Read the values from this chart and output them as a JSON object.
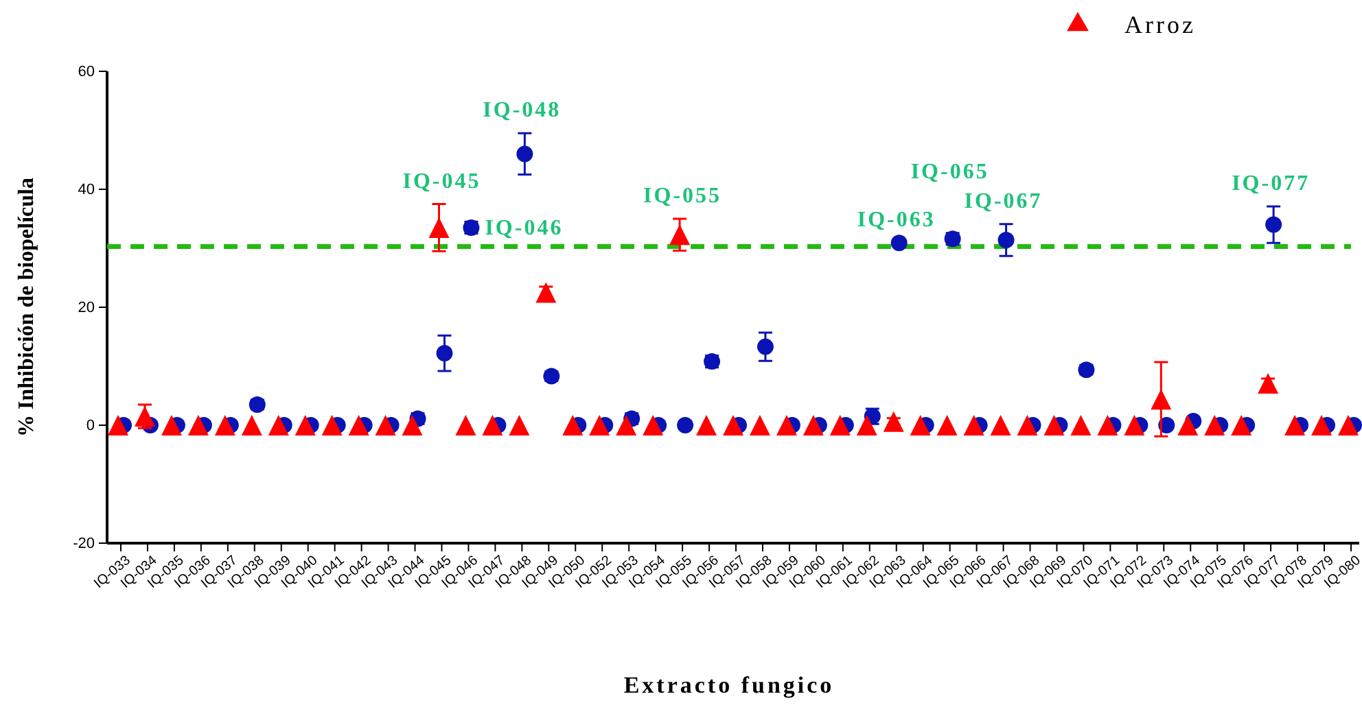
{
  "chart_data": {
    "type": "scatter",
    "xlabel": "Extracto fungico",
    "ylabel": "% Inhibición de biopelícula",
    "categories": [
      "IQ-033",
      "IQ-034",
      "IQ-035",
      "IQ-036",
      "IQ-037",
      "IQ-038",
      "IQ-039",
      "IQ-040",
      "IQ-041",
      "IQ-042",
      "IQ-043",
      "IQ-044",
      "IQ-045",
      "IQ-046",
      "IQ-047",
      "IQ-048",
      "IQ-049",
      "IQ-050",
      "IQ-052",
      "IQ-053",
      "IQ-054",
      "IQ-055",
      "IQ-056",
      "IQ-057",
      "IQ-058",
      "IQ-059",
      "IQ-060",
      "IQ-061",
      "IQ-062",
      "IQ-063",
      "IQ-064",
      "IQ-065",
      "IQ-066",
      "IQ-067",
      "IQ-068",
      "IQ-069",
      "IQ-070",
      "IQ-071",
      "IQ-072",
      "IQ-073",
      "IQ-074",
      "IQ-075",
      "IQ-076",
      "IQ-077",
      "IQ-078",
      "IQ-079",
      "IQ-080"
    ],
    "series": [
      {
        "color": "#0a14b4",
        "marker": "circle",
        "values": [
          0,
          0,
          0,
          0,
          0,
          3.5,
          0,
          0,
          0,
          0,
          0,
          1.1,
          12.2,
          33.5,
          0,
          46,
          8.3,
          0,
          0,
          1.1,
          0,
          0,
          10.8,
          0,
          13.3,
          0,
          0,
          0,
          1.5,
          30.9,
          0,
          31.6,
          0,
          31.4,
          0,
          0,
          9.4,
          0,
          0,
          0,
          0.7,
          0,
          0,
          34,
          0,
          0,
          0
        ],
        "errors": [
          null,
          null,
          null,
          null,
          null,
          0.8,
          null,
          null,
          null,
          null,
          null,
          0.9,
          3,
          1,
          null,
          3.5,
          0.8,
          null,
          null,
          0.9,
          null,
          null,
          1,
          null,
          2.4,
          null,
          null,
          null,
          1.3,
          null,
          null,
          1,
          null,
          2.7,
          null,
          null,
          0.8,
          null,
          null,
          null,
          null,
          null,
          null,
          3.1,
          null,
          null,
          null
        ]
      },
      {
        "name": "Arroz",
        "color": "#ff0000",
        "marker": "triangle",
        "values": [
          0,
          1.5,
          0,
          0,
          0,
          0,
          0,
          0,
          0,
          0,
          0,
          0,
          33.5,
          0,
          0,
          0,
          22.5,
          0,
          0,
          0,
          0,
          32.3,
          0,
          0,
          0,
          0,
          0,
          0,
          0,
          0.6,
          0,
          0,
          0,
          0,
          0,
          0,
          0,
          0,
          0,
          4.4,
          0,
          0,
          0,
          7.1,
          0,
          0,
          0
        ],
        "errors": [
          null,
          2,
          null,
          null,
          null,
          null,
          null,
          null,
          null,
          null,
          null,
          null,
          4,
          null,
          null,
          null,
          1,
          null,
          null,
          null,
          null,
          2.7,
          null,
          null,
          null,
          null,
          null,
          null,
          null,
          0.6,
          null,
          null,
          null,
          null,
          null,
          null,
          null,
          null,
          null,
          6.3,
          null,
          null,
          null,
          0.8,
          null,
          null,
          null
        ]
      }
    ],
    "ylim": [
      -20,
      60
    ],
    "yticks": [
      -20,
      0,
      20,
      40,
      60
    ],
    "grid": false,
    "legend": "top right",
    "ref_lines": [
      {
        "axis": "y",
        "value": 30.3,
        "color": "#22bb11",
        "line_style": "dashed"
      }
    ],
    "annotations": [
      {
        "text": "IQ-045",
        "x": "IQ-045",
        "y": 33.5
      },
      {
        "text": "IQ-046",
        "x": "IQ-046",
        "y": 33.5
      },
      {
        "text": "IQ-048",
        "x": "IQ-048",
        "y": 46
      },
      {
        "text": "IQ-055",
        "x": "IQ-055",
        "y": 32.3
      },
      {
        "text": "IQ-063",
        "x": "IQ-063",
        "y": 30.9
      },
      {
        "text": "IQ-065",
        "x": "IQ-065",
        "y": 31.6
      },
      {
        "text": "IQ-067",
        "x": "IQ-067",
        "y": 31.4
      },
      {
        "text": "IQ-077",
        "x": "IQ-077",
        "y": 34
      }
    ]
  }
}
